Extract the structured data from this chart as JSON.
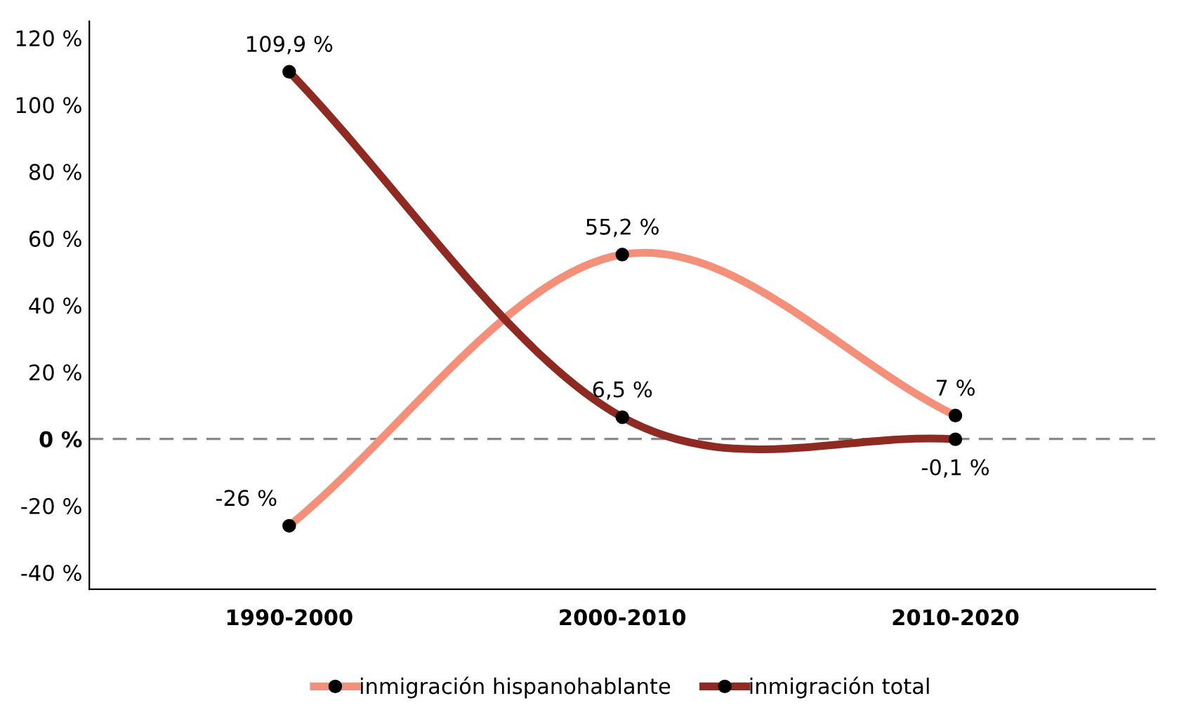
{
  "chart_data": {
    "type": "line",
    "categories": [
      "1990-2000",
      "2000-2010",
      "2010-2020"
    ],
    "series": [
      {
        "name": "inmigración hispanohablante",
        "color": "#f4907a",
        "values": [
          -26,
          55.2,
          7
        ],
        "value_labels": [
          "-26 %",
          "55,2 %",
          "7 %"
        ]
      },
      {
        "name": "inmigración total",
        "color": "#8e2a22",
        "values": [
          109.9,
          6.5,
          -0.1
        ],
        "value_labels": [
          "109,9 %",
          "6,5 %",
          "-0,1 %"
        ]
      }
    ],
    "ylim": [
      -45,
      125
    ],
    "yticks": [
      {
        "value": -40,
        "label": "-40 %"
      },
      {
        "value": -20,
        "label": "-20 %"
      },
      {
        "value": 0,
        "label": "0 %"
      },
      {
        "value": 20,
        "label": "20 %"
      },
      {
        "value": 40,
        "label": "40 %"
      },
      {
        "value": 60,
        "label": "60 %"
      },
      {
        "value": 80,
        "label": "80 %"
      },
      {
        "value": 100,
        "label": "100 %"
      },
      {
        "value": 120,
        "label": "120 %"
      }
    ],
    "ref_lines": [
      {
        "axis": "y",
        "value": 0,
        "label": null,
        "color": "#888888",
        "line_style": "dashed"
      }
    ],
    "marker": "circle",
    "line_style": "solid",
    "grid": false,
    "legend": "bottom"
  }
}
